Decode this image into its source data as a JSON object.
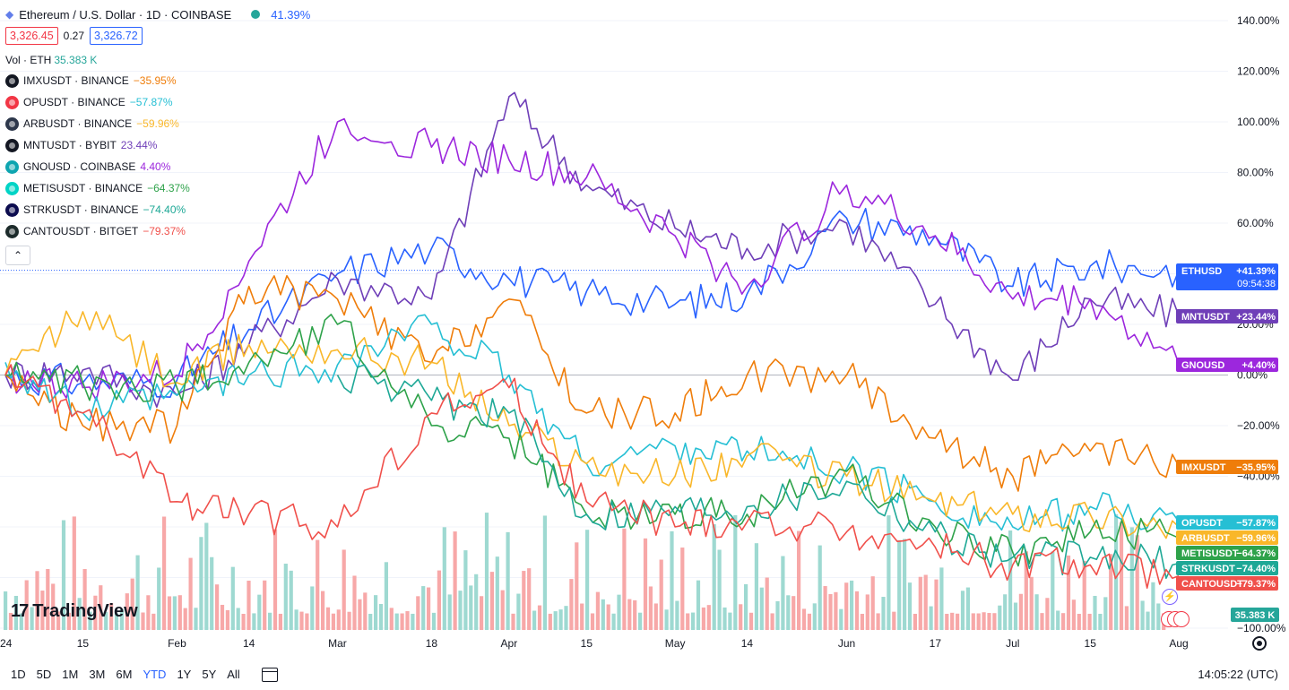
{
  "legend": {
    "title": "Ethereum / U.S. Dollar · 1D · COINBASE",
    "title_change": "41.39%",
    "bid": "3,326.45",
    "spread": "0.27",
    "ask": "3,326.72",
    "volume_label": "Vol · ETH",
    "volume_value": "35.383 K",
    "symbols": [
      {
        "label": "IMXUSDT · BINANCE",
        "change": "−35.95%",
        "color": "#ef7d0a",
        "icon_color": "#131722"
      },
      {
        "label": "OPUSDT · BINANCE",
        "change": "−57.87%",
        "color": "#26bfd4",
        "icon_color": "#f23645"
      },
      {
        "label": "ARBUSDT · BINANCE",
        "change": "−59.96%",
        "color": "#f9b72a",
        "icon_color": "#2d374b"
      },
      {
        "label": "MNTUSDT · BYBIT",
        "change": "23.44%",
        "color": "#6f3fb8",
        "icon_color": "#131722"
      },
      {
        "label": "GNOUSD · COINBASE",
        "change": "4.40%",
        "color": "#9c27dd",
        "icon_color": "#0ea5b0"
      },
      {
        "label": "METISUSDT · BINANCE",
        "change": "−64.37%",
        "color": "#2ea24a",
        "icon_color": "#00d4c6"
      },
      {
        "label": "STRKUSDT · BINANCE",
        "change": "−74.40%",
        "color": "#1ea896",
        "icon_color": "#0c0c4f"
      },
      {
        "label": "CANTOUSDT · BITGET",
        "change": "−79.37%",
        "color": "#f0504b",
        "icon_color": "#1c2b2b"
      }
    ],
    "collapse_icon": "chevron-up-icon"
  },
  "axis_labels": {
    "yticks": [
      "140.00%",
      "120.00%",
      "100.00%",
      "80.00%",
      "60.00%",
      "20.00%",
      "0.00%",
      "−20.00%",
      "−40.00%",
      "−100.00%"
    ],
    "xticks": [
      "24",
      "15",
      "Feb",
      "14",
      "Mar",
      "18",
      "Apr",
      "15",
      "May",
      "14",
      "Jun",
      "17",
      "Jul",
      "15",
      "Aug"
    ]
  },
  "price_labels": [
    {
      "name": "ETHUSD",
      "value": "+41.39%",
      "sub": "09:54:38",
      "color": "#2962ff"
    },
    {
      "name": "MNTUSDT",
      "value": "+23.44%",
      "color": "#6f3fb8"
    },
    {
      "name": "GNOUSD",
      "value": "+4.40%",
      "color": "#9c27dd"
    },
    {
      "name": "IMXUSDT",
      "value": "−35.95%",
      "color": "#ef7d0a"
    },
    {
      "name": "OPUSDT",
      "value": "−57.87%",
      "color": "#26bfd4"
    },
    {
      "name": "ARBUSDT",
      "value": "−59.96%",
      "color": "#f9b72a"
    },
    {
      "name": "METISUSDT",
      "value": "−64.37%",
      "color": "#2ea24a"
    },
    {
      "name": "STRKUSDT",
      "value": "−74.40%",
      "color": "#1ea896"
    },
    {
      "name": "CANTOUSDT",
      "value": "−79.37%",
      "color": "#f0504b"
    }
  ],
  "volume_label": {
    "value": "35.383 K",
    "color": "#26a69a"
  },
  "watermark": {
    "logo": "17",
    "text": "TradingView"
  },
  "bottom_bar": {
    "ranges": [
      "1D",
      "5D",
      "1M",
      "3M",
      "6M",
      "YTD",
      "1Y",
      "5Y",
      "All"
    ],
    "active": "YTD",
    "clock": "14:05:22 (UTC)"
  },
  "chart_data": {
    "type": "line",
    "title": "Ethereum / U.S. Dollar · 1D · COINBASE",
    "y_unit": "%",
    "ylim": [
      -100,
      145
    ],
    "x_range": [
      "2024-01-01",
      "2024-07-31"
    ],
    "x_dates": [
      "2024-01-01",
      "2024-01-15",
      "2024-02-01",
      "2024-02-14",
      "2024-03-01",
      "2024-03-18",
      "2024-04-01",
      "2024-04-15",
      "2024-05-01",
      "2024-05-14",
      "2024-06-01",
      "2024-06-17",
      "2024-07-01",
      "2024-07-15",
      "2024-07-31"
    ],
    "series": [
      {
        "name": "ETHUSD",
        "color": "#2962ff",
        "values": [
          0,
          -3,
          -2,
          18,
          40,
          50,
          38,
          33,
          28,
          32,
          62,
          55,
          35,
          43,
          41.39
        ]
      },
      {
        "name": "MNTUSDT",
        "color": "#6f3fb8",
        "values": [
          0,
          2,
          -8,
          12,
          38,
          30,
          110,
          75,
          58,
          50,
          60,
          28,
          -2,
          30,
          23.44
        ]
      },
      {
        "name": "GNOUSD",
        "color": "#9c27dd",
        "values": [
          0,
          -5,
          0,
          45,
          100,
          90,
          85,
          78,
          55,
          35,
          75,
          55,
          30,
          30,
          4.4
        ]
      },
      {
        "name": "IMXUSDT",
        "color": "#ef7d0a",
        "values": [
          0,
          -20,
          -20,
          35,
          30,
          5,
          30,
          -15,
          -15,
          0,
          0,
          -25,
          -40,
          -30,
          -35.95
        ]
      },
      {
        "name": "OPUSDT",
        "color": "#26bfd4",
        "values": [
          5,
          -15,
          -8,
          0,
          4,
          20,
          0,
          -35,
          -28,
          -30,
          -37,
          -50,
          -60,
          -52,
          -57.87
        ]
      },
      {
        "name": "ARBUSDT",
        "color": "#f9b72a",
        "values": [
          0,
          25,
          -3,
          12,
          10,
          5,
          -20,
          -35,
          -40,
          -32,
          -40,
          -50,
          -55,
          -55,
          -59.96
        ]
      },
      {
        "name": "METISUSDT",
        "color": "#2ea24a",
        "values": [
          0,
          -3,
          -5,
          5,
          20,
          -20,
          -25,
          -55,
          -55,
          -55,
          -38,
          -60,
          -70,
          -62,
          -64.37
        ]
      },
      {
        "name": "STRKUSDT",
        "color": "#1ea896",
        "values": [
          null,
          null,
          null,
          null,
          0,
          -10,
          -15,
          -55,
          -52,
          -52,
          -42,
          -62,
          -72,
          -72,
          -74.4
        ]
      },
      {
        "name": "CANTOUSDT",
        "color": "#f0504b",
        "values": [
          0,
          -15,
          -50,
          -55,
          -60,
          -15,
          -5,
          -50,
          -60,
          -58,
          -62,
          -68,
          -75,
          -75,
          -79.37
        ]
      }
    ]
  }
}
